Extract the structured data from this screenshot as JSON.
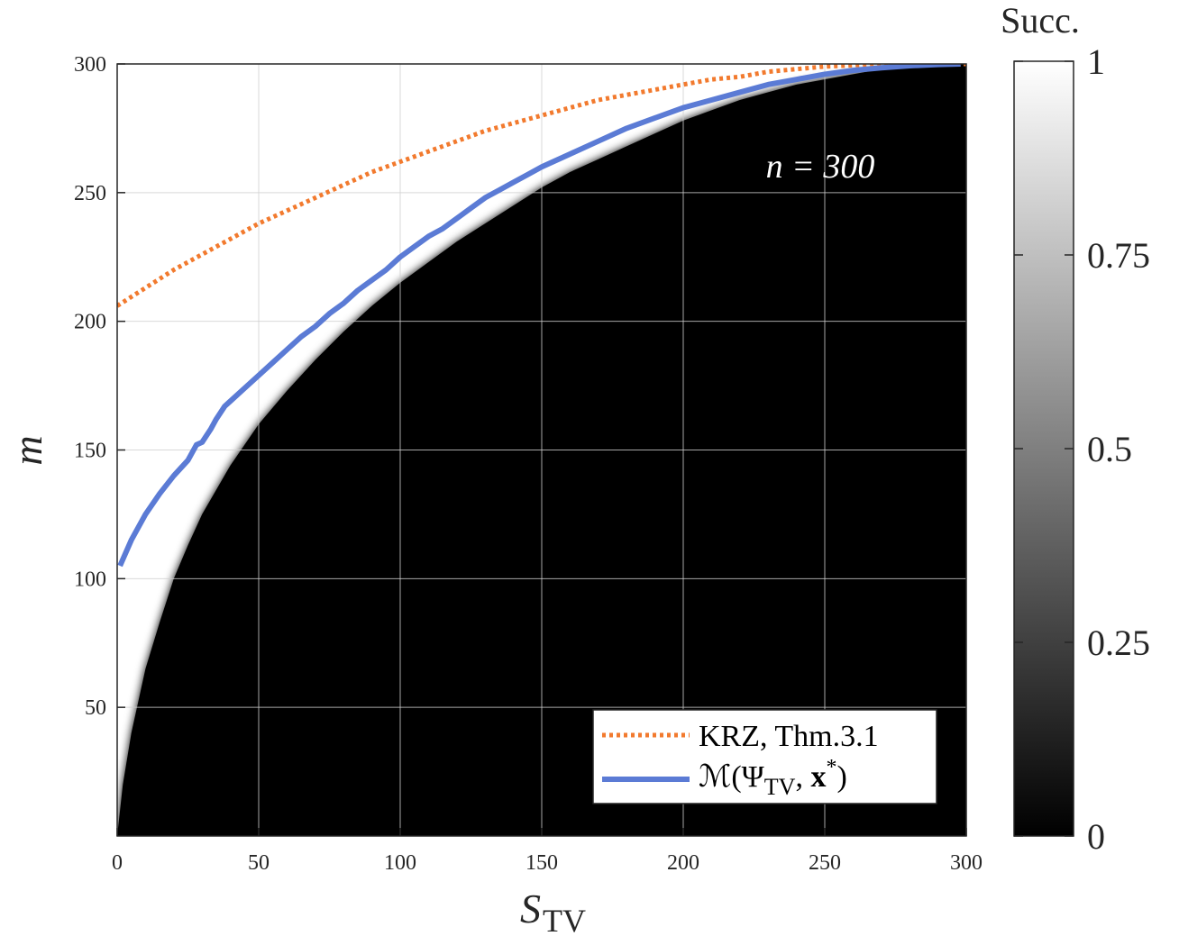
{
  "chart_data": {
    "type": "heatmap",
    "annotation": "n = 300",
    "xlabel": "S",
    "xlabel_sub": "TV",
    "ylabel": "m",
    "xlim": [
      0,
      300
    ],
    "ylim": [
      0,
      300
    ],
    "x_ticks": [
      0,
      50,
      100,
      150,
      200,
      250,
      300
    ],
    "y_ticks": [
      50,
      100,
      150,
      200,
      250,
      300
    ],
    "grid": true,
    "colormap": "gray",
    "colorbar": {
      "title": "Succ.",
      "ticks": [
        "0",
        "0.25",
        "0.5",
        "0.75",
        "1"
      ],
      "range": [
        0,
        1
      ]
    },
    "transition_boundary": {
      "x": [
        0,
        2,
        5,
        10,
        15,
        20,
        25,
        30,
        40,
        50,
        60,
        70,
        80,
        90,
        100,
        110,
        120,
        130,
        140,
        150,
        160,
        170,
        180,
        190,
        200,
        210,
        220,
        230,
        240,
        250,
        260,
        270,
        280,
        290,
        300
      ],
      "y": [
        0,
        20,
        40,
        65,
        83,
        100,
        113,
        125,
        144,
        160,
        173,
        185,
        196,
        206,
        215,
        223,
        231,
        238,
        245,
        252,
        258,
        263,
        268,
        273,
        278,
        282,
        286,
        289,
        292,
        294,
        296,
        298,
        299,
        300,
        300
      ]
    },
    "legend_position": "bottom-right",
    "series": [
      {
        "name": "KRZ, Thm.3.1",
        "style": "dotted",
        "color": "#f27a2e",
        "x": [
          0,
          10,
          20,
          30,
          40,
          50,
          60,
          70,
          80,
          90,
          100,
          110,
          120,
          130,
          140,
          150,
          160,
          170,
          180,
          190,
          200,
          210,
          220,
          230,
          240,
          250,
          260,
          270,
          280,
          290,
          300
        ],
        "y": [
          206,
          213,
          220,
          226,
          232,
          238,
          243,
          248,
          253,
          258,
          262,
          266,
          270,
          274,
          277,
          280,
          283,
          286,
          288,
          290,
          292,
          294,
          295,
          297,
          298,
          299,
          299.5,
          300,
          300,
          300,
          300
        ]
      },
      {
        "name": "M(Ψ_TV, x*)",
        "name_parts": {
          "head": "ℳ(Ψ",
          "sub": "TV",
          "mid": ", ",
          "vec": "x",
          "sup": "*",
          "tail": ")"
        },
        "style": "solid",
        "color": "#5b7bd5",
        "x": [
          1,
          5,
          10,
          15,
          20,
          25,
          28,
          30,
          33,
          35,
          38,
          40,
          45,
          50,
          55,
          60,
          65,
          70,
          75,
          80,
          85,
          90,
          95,
          100,
          105,
          110,
          115,
          120,
          125,
          130,
          135,
          140,
          145,
          150,
          160,
          170,
          180,
          190,
          200,
          210,
          220,
          230,
          240,
          250,
          260,
          270,
          280,
          290,
          298
        ],
        "y": [
          105,
          115,
          125,
          133,
          140,
          146,
          152,
          153,
          158,
          162,
          167,
          169,
          174,
          179,
          184,
          189,
          194,
          198,
          203,
          207,
          212,
          216,
          220,
          225,
          229,
          233,
          236,
          240,
          244,
          248,
          251,
          254,
          257,
          260,
          265,
          270,
          275,
          279,
          283,
          286,
          289,
          292,
          294,
          296,
          297.5,
          298.5,
          299.3,
          299.8,
          300
        ]
      }
    ]
  }
}
